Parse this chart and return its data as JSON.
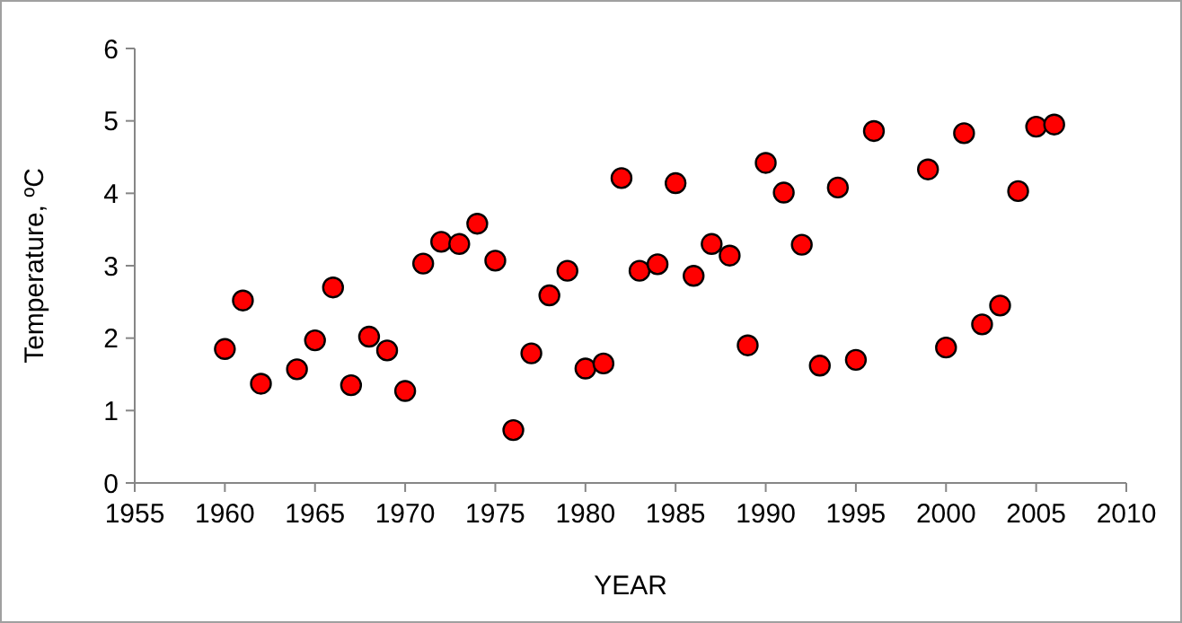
{
  "chart_data": {
    "type": "scatter",
    "xlabel": "YEAR",
    "ylabel": "Temperature, ºC",
    "marker": "circle",
    "xlim": [
      1955,
      2010
    ],
    "xticks": [
      1955,
      1960,
      1965,
      1970,
      1975,
      1980,
      1985,
      1990,
      1995,
      2000,
      2005,
      2010
    ],
    "ylim": [
      0,
      6
    ],
    "yticks": [
      0,
      1,
      2,
      3,
      4,
      5,
      6
    ],
    "series": [
      {
        "color": "#ff0000",
        "x": [
          1960,
          1961,
          1962,
          1964,
          1965,
          1966,
          1967,
          1968,
          1969,
          1970,
          1971,
          1972,
          1973,
          1974,
          1975,
          1976,
          1977,
          1978,
          1979,
          1980,
          1981,
          1982,
          1983,
          1984,
          1985,
          1986,
          1987,
          1988,
          1989,
          1990,
          1991,
          1992,
          1993,
          1994,
          1995,
          1996,
          1999,
          2000,
          2001,
          2002,
          2003,
          2004,
          2005,
          2006
        ],
        "values": [
          1.85,
          2.52,
          1.37,
          1.57,
          1.97,
          2.7,
          1.35,
          2.02,
          1.83,
          1.27,
          3.03,
          3.33,
          3.3,
          3.58,
          3.07,
          0.73,
          1.79,
          2.59,
          2.93,
          1.58,
          1.65,
          4.21,
          2.93,
          3.02,
          4.14,
          2.86,
          3.3,
          3.14,
          1.9,
          4.42,
          4.01,
          3.29,
          1.62,
          4.08,
          1.7,
          4.86,
          4.33,
          1.87,
          4.83,
          2.19,
          2.45,
          4.03,
          4.92,
          4.95
        ]
      }
    ]
  }
}
